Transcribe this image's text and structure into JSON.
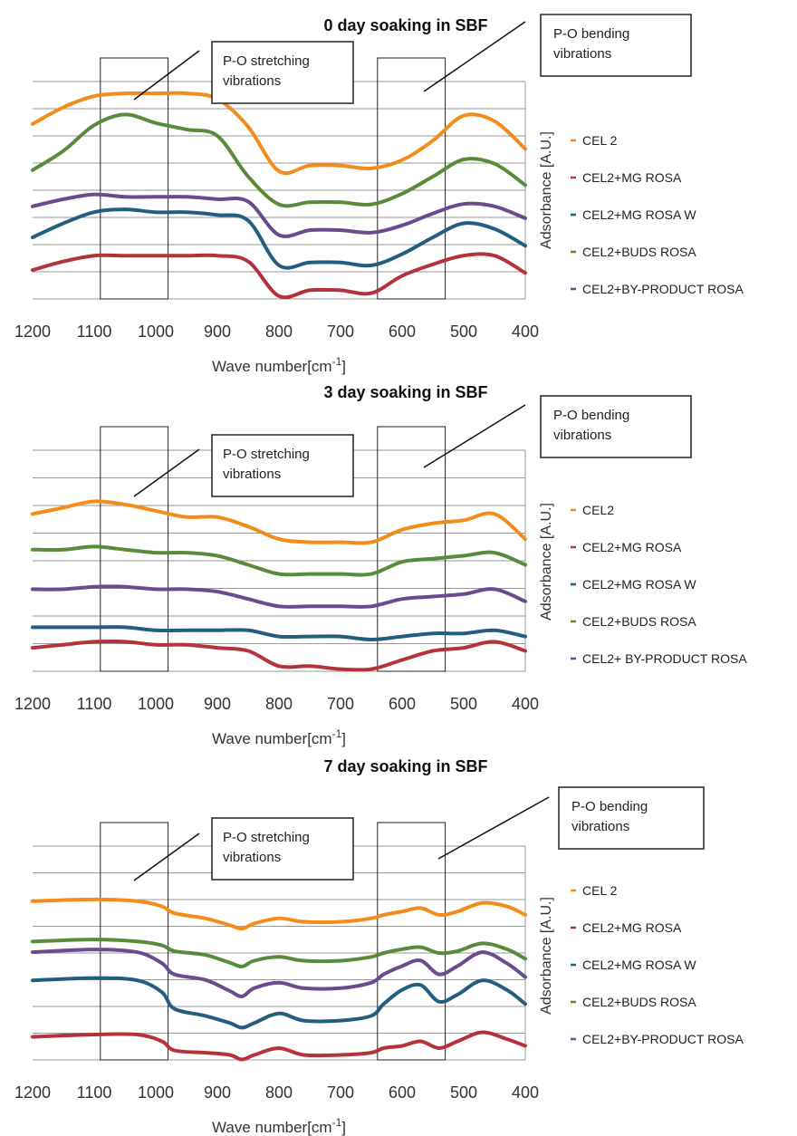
{
  "chart_data": [
    {
      "type": "line",
      "title": "0 day soaking in SBF",
      "xlabel": "Wave number[cm-1]",
      "ylabel": "Adsorbance [A.U.]",
      "xlim": [
        1200,
        400
      ],
      "xticks": [
        "1200",
        "1100",
        "1000",
        "900",
        "800",
        "700",
        "600",
        "500",
        "400"
      ],
      "grid": true,
      "legend_position": "right",
      "annotations": [
        {
          "text_lines": [
            "P-O stretching",
            "vibrations"
          ],
          "band": [
            1090,
            980
          ]
        },
        {
          "text_lines": [
            "P-O bending",
            "vibrations"
          ],
          "band": [
            640,
            530
          ]
        }
      ],
      "series": [
        {
          "name": "CEL 2",
          "color": "#F28C1A",
          "x": [
            1200,
            1150,
            1100,
            1050,
            1000,
            950,
            900,
            850,
            800,
            750,
            700,
            650,
            600,
            550,
            500,
            450,
            400
          ],
          "values": [
            7.3,
            7.9,
            8.3,
            8.4,
            8.4,
            8.4,
            8.2,
            7.2,
            5.6,
            5.8,
            5.8,
            5.7,
            6.0,
            6.7,
            7.6,
            7.4,
            6.4
          ]
        },
        {
          "name": "CEL2+MG ROSA",
          "color": "#B5323C",
          "x": [
            1200,
            1150,
            1100,
            1050,
            1000,
            950,
            900,
            850,
            800,
            750,
            700,
            650,
            600,
            550,
            500,
            450,
            400
          ],
          "values": [
            1.0,
            1.3,
            1.5,
            1.5,
            1.5,
            1.5,
            1.5,
            1.3,
            0.1,
            0.3,
            0.3,
            0.2,
            0.8,
            1.2,
            1.5,
            1.5,
            0.9
          ]
        },
        {
          "name": "CEL2+MG ROSA W",
          "color": "#235E80",
          "x": [
            1200,
            1150,
            1100,
            1050,
            1000,
            950,
            900,
            850,
            800,
            750,
            700,
            650,
            600,
            550,
            500,
            450,
            400
          ],
          "values": [
            2.1,
            2.6,
            3.0,
            3.1,
            3.0,
            3.0,
            2.9,
            2.7,
            1.1,
            1.2,
            1.2,
            1.1,
            1.5,
            2.1,
            2.6,
            2.4,
            1.8
          ]
        },
        {
          "name": "CEL2+BUDS ROSA",
          "color": "#5A8B3A",
          "x": [
            1200,
            1150,
            1100,
            1050,
            1000,
            950,
            900,
            850,
            800,
            750,
            700,
            650,
            600,
            550,
            500,
            450,
            400
          ],
          "values": [
            5.0,
            5.9,
            7.1,
            7.6,
            7.2,
            6.9,
            6.6,
            4.7,
            3.4,
            3.5,
            3.5,
            3.4,
            3.9,
            4.7,
            5.5,
            5.3,
            4.3
          ]
        },
        {
          "name": "CEL2+BY-PRODUCT ROSA",
          "color": "#6C4A8E",
          "x": [
            1200,
            1150,
            1100,
            1050,
            1000,
            950,
            900,
            850,
            800,
            750,
            700,
            650,
            600,
            550,
            500,
            450,
            400
          ],
          "values": [
            3.4,
            3.7,
            3.9,
            3.8,
            3.8,
            3.8,
            3.7,
            3.6,
            2.2,
            2.4,
            2.4,
            2.3,
            2.6,
            3.1,
            3.5,
            3.4,
            2.9
          ]
        }
      ]
    },
    {
      "type": "line",
      "title": "3 day soaking in SBF",
      "xlabel": "Wave number[cm-1]",
      "ylabel": "Adsorbance [A.U.]",
      "xlim": [
        1200,
        400
      ],
      "xticks": [
        "1200",
        "1100",
        "1000",
        "900",
        "800",
        "700",
        "600",
        "500",
        "400"
      ],
      "grid": true,
      "legend_position": "right",
      "annotations": [
        {
          "text_lines": [
            "P-O stretching",
            "vibrations"
          ],
          "band": [
            1090,
            980
          ]
        },
        {
          "text_lines": [
            "P-O bending",
            "vibrations"
          ],
          "band": [
            640,
            530
          ]
        }
      ],
      "series": [
        {
          "name": "CEL2",
          "color": "#F28C1A",
          "x": [
            1200,
            1150,
            1100,
            1050,
            1000,
            950,
            900,
            850,
            800,
            750,
            700,
            650,
            600,
            550,
            500,
            450,
            400
          ],
          "values": [
            5.7,
            5.9,
            6.1,
            6.0,
            5.8,
            5.6,
            5.6,
            5.3,
            4.9,
            4.8,
            4.8,
            4.8,
            5.2,
            5.4,
            5.5,
            5.7,
            4.9
          ]
        },
        {
          "name": "CEL2+MG ROSA",
          "color": "#B5323C",
          "x": [
            1200,
            1150,
            1100,
            1050,
            1000,
            950,
            900,
            850,
            800,
            750,
            700,
            650,
            600,
            550,
            500,
            450,
            400
          ],
          "values": [
            0.7,
            0.8,
            0.9,
            0.9,
            0.8,
            0.8,
            0.7,
            0.6,
            0.1,
            0.1,
            0.0,
            0.0,
            0.3,
            0.6,
            0.7,
            0.9,
            0.6
          ]
        },
        {
          "name": "CEL2+MG ROSA W",
          "color": "#235E80",
          "x": [
            1200,
            1150,
            1100,
            1050,
            1000,
            950,
            900,
            850,
            800,
            750,
            700,
            650,
            600,
            550,
            500,
            450,
            400
          ],
          "values": [
            1.6,
            1.6,
            1.6,
            1.6,
            1.5,
            1.5,
            1.5,
            1.5,
            1.3,
            1.3,
            1.3,
            1.2,
            1.3,
            1.4,
            1.4,
            1.5,
            1.3
          ]
        },
        {
          "name": "CEL2+BUDS ROSA",
          "color": "#5A8B3A",
          "x": [
            1200,
            1150,
            1100,
            1050,
            1000,
            950,
            900,
            850,
            800,
            750,
            700,
            650,
            600,
            550,
            500,
            450,
            400
          ],
          "values": [
            4.1,
            4.1,
            4.2,
            4.1,
            4.0,
            4.0,
            3.9,
            3.6,
            3.3,
            3.3,
            3.3,
            3.3,
            3.7,
            3.8,
            3.9,
            4.0,
            3.6
          ]
        },
        {
          "name": "CEL2+ BY-PRODUCT ROSA",
          "color": "#6C4A8E",
          "x": [
            1200,
            1150,
            1100,
            1050,
            1000,
            950,
            900,
            850,
            800,
            750,
            700,
            650,
            600,
            550,
            500,
            450,
            400
          ],
          "values": [
            2.9,
            2.9,
            3.0,
            3.0,
            2.9,
            2.9,
            2.8,
            2.5,
            2.2,
            2.2,
            2.2,
            2.2,
            2.5,
            2.6,
            2.7,
            2.9,
            2.4
          ]
        }
      ]
    },
    {
      "type": "line",
      "title": "7 day soaking in SBF",
      "xlabel": "Wave number[cm-1]",
      "ylabel": "Adsorbance [A.U.]",
      "xlim": [
        1200,
        400
      ],
      "xticks": [
        "1200",
        "1100",
        "1000",
        "900",
        "800",
        "700",
        "600",
        "500",
        "400"
      ],
      "grid": true,
      "legend_position": "right",
      "annotations": [
        {
          "text_lines": [
            "P-O stretching",
            "vibrations"
          ],
          "band": [
            1090,
            980
          ]
        },
        {
          "text_lines": [
            "P-O bending",
            "vibrations"
          ],
          "band": [
            640,
            530
          ]
        }
      ],
      "series": [
        {
          "name": "CEL 2",
          "color": "#F28C1A",
          "x": [
            1200,
            1100,
            1030,
            990,
            970,
            920,
            880,
            860,
            840,
            800,
            760,
            700,
            650,
            630,
            600,
            570,
            540,
            510,
            470,
            430,
            400
          ],
          "values": [
            5.7,
            5.8,
            5.7,
            5.4,
            5.0,
            4.7,
            4.3,
            4.1,
            4.4,
            4.7,
            4.5,
            4.5,
            4.7,
            4.9,
            5.1,
            5.3,
            4.9,
            5.1,
            5.6,
            5.4,
            4.9
          ]
        },
        {
          "name": "CEL2+MG ROSA",
          "color": "#B5323C",
          "x": [
            1200,
            1100,
            1030,
            990,
            970,
            920,
            880,
            860,
            840,
            800,
            760,
            700,
            650,
            630,
            600,
            570,
            540,
            510,
            470,
            430,
            400
          ],
          "values": [
            0.8,
            0.9,
            0.9,
            0.6,
            0.2,
            0.1,
            0.0,
            -0.2,
            0.0,
            0.3,
            0.0,
            0.0,
            0.1,
            0.3,
            0.4,
            0.6,
            0.3,
            0.6,
            1.0,
            0.7,
            0.4
          ]
        },
        {
          "name": "CEL2+MG ROSA W",
          "color": "#235E80",
          "x": [
            1200,
            1100,
            1030,
            990,
            970,
            920,
            880,
            860,
            840,
            800,
            760,
            700,
            650,
            630,
            600,
            570,
            540,
            510,
            470,
            430,
            400
          ],
          "values": [
            3.0,
            3.1,
            3.0,
            2.5,
            1.8,
            1.5,
            1.2,
            1.0,
            1.2,
            1.6,
            1.3,
            1.3,
            1.5,
            2.0,
            2.6,
            2.8,
            2.1,
            2.4,
            3.0,
            2.6,
            2.0
          ]
        },
        {
          "name": "CEL2+BUDS ROSA",
          "color": "#5A8B3A",
          "x": [
            1200,
            1100,
            1030,
            990,
            970,
            920,
            880,
            860,
            840,
            800,
            760,
            700,
            650,
            630,
            600,
            570,
            540,
            510,
            470,
            430,
            400
          ],
          "values": [
            4.4,
            4.5,
            4.4,
            4.2,
            3.9,
            3.7,
            3.3,
            3.1,
            3.4,
            3.6,
            3.4,
            3.4,
            3.6,
            3.8,
            4.0,
            4.1,
            3.8,
            3.9,
            4.3,
            4.0,
            3.5
          ]
        },
        {
          "name": "CEL2+BY-PRODUCT ROSA",
          "color": "#6C4A8E",
          "x": [
            1200,
            1100,
            1030,
            990,
            970,
            920,
            880,
            860,
            840,
            800,
            760,
            700,
            650,
            630,
            600,
            570,
            540,
            510,
            470,
            430,
            400
          ],
          "values": [
            3.9,
            4.0,
            3.9,
            3.5,
            3.1,
            2.9,
            2.5,
            2.3,
            2.6,
            2.8,
            2.6,
            2.6,
            2.8,
            3.1,
            3.4,
            3.6,
            3.1,
            3.4,
            3.9,
            3.5,
            3.0
          ]
        }
      ]
    }
  ]
}
